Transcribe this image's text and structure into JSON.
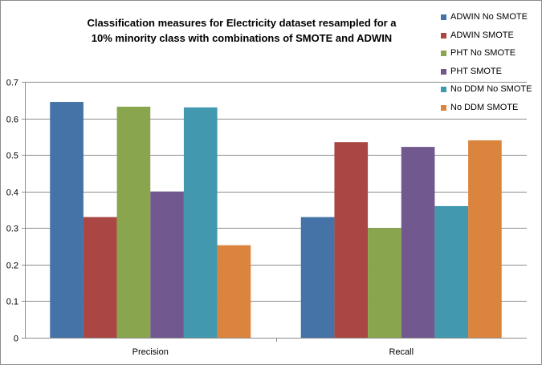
{
  "chart_data": {
    "type": "bar",
    "title_lines": [
      "Classification measures for Electricity dataset resampled for a",
      "10% minority class with combinations of SMOTE and ADWIN"
    ],
    "categories": [
      "Precision",
      "Recall"
    ],
    "series": [
      {
        "name": "ADWIN No SMOTE",
        "color": "#4572a7",
        "values": [
          0.645,
          0.33
        ]
      },
      {
        "name": "ADWIN SMOTE",
        "color": "#aa4643",
        "values": [
          0.33,
          0.535
        ]
      },
      {
        "name": "PHT No SMOTE",
        "color": "#89a54e",
        "values": [
          0.632,
          0.3
        ]
      },
      {
        "name": "PHT SMOTE",
        "color": "#71588f",
        "values": [
          0.4,
          0.522
        ]
      },
      {
        "name": "No DDM No SMOTE",
        "color": "#4198af",
        "values": [
          0.63,
          0.36
        ]
      },
      {
        "name": "No DDM SMOTE",
        "color": "#db843d",
        "values": [
          0.253,
          0.54
        ]
      }
    ],
    "ylim": [
      0,
      0.7
    ],
    "yticks": [
      "0",
      "0.1",
      "0.2",
      "0.3",
      "0.4",
      "0.5",
      "0.6",
      "0.7"
    ],
    "grid": true,
    "legend_position": "right"
  }
}
